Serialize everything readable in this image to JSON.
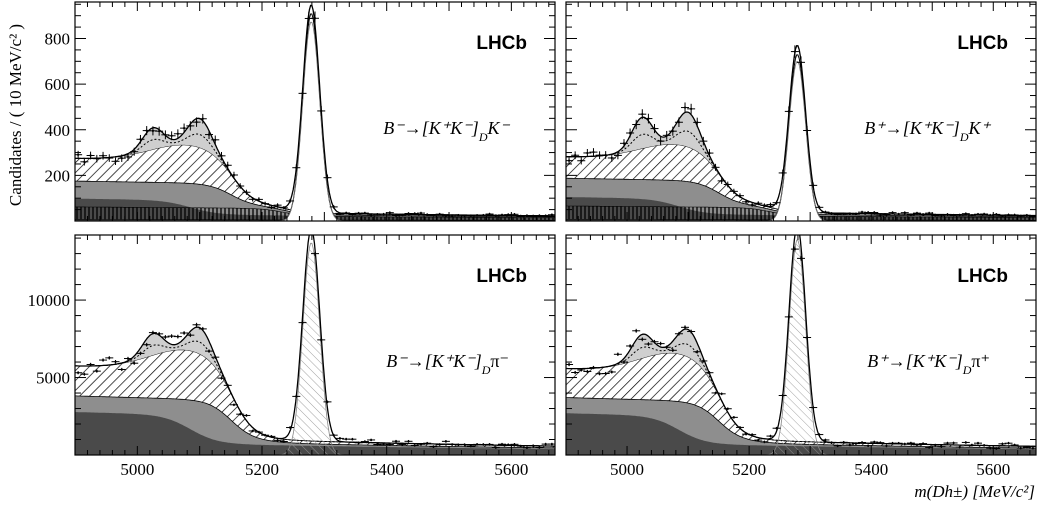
{
  "figure": {
    "ylabel": "Candidates / ( 10 MeV/c² )",
    "xlabel": "m(Dh±) [MeV/c²]",
    "watermark": "LHCb"
  },
  "chart_data": [
    {
      "type": "line",
      "panel": "top-left",
      "label": "B⁻→[K⁺K⁻]_D K⁻",
      "xlim": [
        4900,
        5670
      ],
      "ylim": [
        0,
        960
      ],
      "yticks": [
        200,
        400,
        600,
        800
      ],
      "xticks": [
        5000,
        5200,
        5400,
        5600
      ],
      "peak_center": 5279,
      "peak_height": 910,
      "low_mass_peaks": [
        {
          "x": 5025,
          "y": 440
        },
        {
          "x": 5100,
          "y": 485
        }
      ],
      "combinatorial_level": 140,
      "hatched_hump_max": 160
    },
    {
      "type": "line",
      "panel": "top-right",
      "label": "B⁺→[K⁺K⁻]_D K⁺",
      "xlim": [
        4900,
        5670
      ],
      "ylim": [
        0,
        960
      ],
      "yticks": [
        200,
        400,
        600,
        800
      ],
      "xticks": [
        5000,
        5200,
        5400,
        5600
      ],
      "peak_center": 5279,
      "peak_height": 730,
      "low_mass_peaks": [
        {
          "x": 5025,
          "y": 500
        },
        {
          "x": 5100,
          "y": 520
        }
      ],
      "combinatorial_level": 150,
      "hatched_hump_max": 150
    },
    {
      "type": "line",
      "panel": "bottom-left",
      "label": "B⁻→[K⁺K⁻]_D π⁻",
      "xlim": [
        4900,
        5670
      ],
      "ylim": [
        0,
        14200
      ],
      "yticks": [
        5000,
        10000
      ],
      "xticks": [
        5000,
        5200,
        5400,
        5600
      ],
      "peak_center": 5279,
      "peak_height": 13700,
      "low_mass_peaks": [
        {
          "x": 5025,
          "y": 8300
        },
        {
          "x": 5100,
          "y": 8700
        }
      ],
      "combinatorial_level": 3600,
      "hatched_hump_max": 3000
    },
    {
      "type": "line",
      "panel": "bottom-right",
      "label": "B⁺→[K⁺K⁻]_D π⁺",
      "xlim": [
        4900,
        5670
      ],
      "ylim": [
        0,
        14200
      ],
      "yticks": [
        5000,
        10000
      ],
      "xticks": [
        5000,
        5200,
        5400,
        5600
      ],
      "peak_center": 5279,
      "peak_height": 13900,
      "low_mass_peaks": [
        {
          "x": 5025,
          "y": 8300
        },
        {
          "x": 5100,
          "y": 8600
        }
      ],
      "combinatorial_level": 3500,
      "hatched_hump_max": 2900
    }
  ]
}
